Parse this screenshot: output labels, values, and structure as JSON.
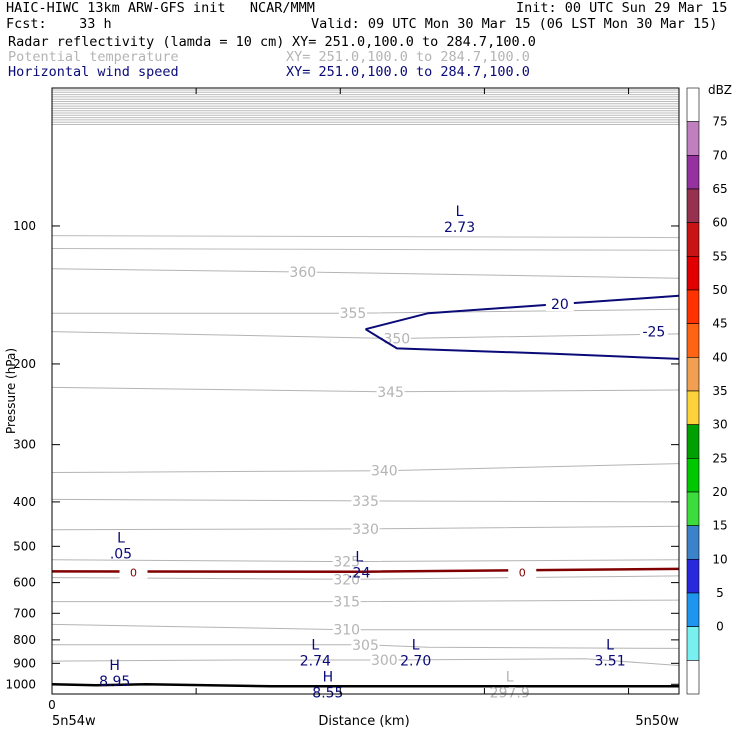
{
  "header": {
    "title": "HAIC-HIWC 13km ARW-GFS init   NCAR/MMM",
    "init": "Init: 00 UTC Sun 29 Mar 15",
    "fcst": "Fcst:    33 h",
    "valid": "Valid: 09 UTC Mon 30 Mar 15 (06 LST Mon 30 Mar 15)"
  },
  "fields": [
    {
      "name": "Radar reflectivity (lamda = 10 cm)",
      "xy": "XY= 251.0,100.0 to 284.7,100.0",
      "color": "#000000"
    },
    {
      "name": "Potential temperature",
      "xy": "XY= 251.0,100.0 to 284.7,100.0",
      "color": "#b4b4b4"
    },
    {
      "name": "Horizontal wind speed",
      "xy": "XY= 251.0,100.0 to 284.7,100.0",
      "color": "#0a0a78"
    }
  ],
  "chart_data": {
    "type": "contour",
    "ylabel": "Pressure (hPa)",
    "xlabel": "Distance (km)",
    "y_scale": "log-pressure",
    "ylim": [
      1050,
      50
    ],
    "xlim": [
      0,
      1
    ],
    "y_ticks": [
      100,
      200,
      300,
      400,
      500,
      600,
      700,
      800,
      900,
      1000
    ],
    "x_tick_start": "0",
    "x_left_label": "5n54w",
    "x_right_label": "5n50w",
    "theta_contours": [
      {
        "label": "360",
        "lx": 0.4,
        "ly": 126,
        "pts": [
          [
            0,
            124
          ],
          [
            0.4,
            126
          ],
          [
            1,
            130
          ]
        ]
      },
      {
        "label": "355",
        "lx": 0.48,
        "ly": 155,
        "pts": [
          [
            0,
            155
          ],
          [
            0.48,
            155
          ],
          [
            1,
            152
          ]
        ]
      },
      {
        "label": "350",
        "lx": 0.55,
        "ly": 176,
        "pts": [
          [
            0,
            170
          ],
          [
            0.55,
            176
          ],
          [
            1,
            172
          ]
        ]
      },
      {
        "label": "345",
        "lx": 0.54,
        "ly": 230,
        "pts": [
          [
            0,
            225
          ],
          [
            0.54,
            230
          ],
          [
            1,
            228
          ]
        ]
      },
      {
        "label": "340",
        "lx": 0.53,
        "ly": 342,
        "pts": [
          [
            0,
            345
          ],
          [
            0.53,
            342
          ],
          [
            1,
            330
          ]
        ]
      },
      {
        "label": "335",
        "lx": 0.5,
        "ly": 398,
        "pts": [
          [
            0,
            395
          ],
          [
            0.5,
            398
          ],
          [
            1,
            400
          ]
        ]
      },
      {
        "label": "330",
        "lx": 0.5,
        "ly": 458,
        "pts": [
          [
            0,
            460
          ],
          [
            0.5,
            458
          ],
          [
            1,
            452
          ]
        ]
      },
      {
        "label": "325",
        "lx": 0.47,
        "ly": 540,
        "pts": [
          [
            0,
            535
          ],
          [
            0.47,
            540
          ],
          [
            1,
            535
          ]
        ]
      },
      {
        "label": "320",
        "lx": 0.47,
        "ly": 590,
        "pts": [
          [
            0,
            585
          ],
          [
            0.47,
            590
          ],
          [
            1,
            580
          ]
        ]
      },
      {
        "label": "315",
        "lx": 0.47,
        "ly": 660,
        "pts": [
          [
            0,
            660
          ],
          [
            0.47,
            660
          ],
          [
            1,
            655
          ]
        ]
      },
      {
        "label": "310",
        "lx": 0.47,
        "ly": 760,
        "pts": [
          [
            0,
            740
          ],
          [
            0.47,
            760
          ],
          [
            1,
            760
          ]
        ]
      },
      {
        "label": "305",
        "lx": 0.5,
        "ly": 820,
        "pts": [
          [
            0,
            820
          ],
          [
            0.5,
            820
          ],
          [
            0.6,
            830
          ],
          [
            1,
            835
          ]
        ]
      },
      {
        "label": "300",
        "lx": 0.53,
        "ly": 885,
        "pts": [
          [
            0,
            890
          ],
          [
            0.3,
            885
          ],
          [
            0.53,
            885
          ],
          [
            0.85,
            880
          ],
          [
            1,
            910
          ]
        ]
      }
    ],
    "wind_contours": [
      {
        "label": "20",
        "lx": 0.81,
        "ly": 148,
        "pts": [
          [
            0.5,
            168
          ],
          [
            0.6,
            155
          ],
          [
            0.81,
            148
          ],
          [
            1,
            142
          ]
        ]
      },
      {
        "label": "-25",
        "lx": 0.96,
        "ly": 170,
        "pts": [
          [
            0.5,
            168
          ],
          [
            0.55,
            185
          ],
          [
            0.8,
            190
          ],
          [
            1,
            195
          ]
        ]
      }
    ],
    "dbz_contours": [
      {
        "label": "0",
        "lx": 0.13,
        "ly": 568,
        "pts": [
          [
            0,
            567
          ],
          [
            0.5,
            568
          ],
          [
            1,
            560
          ]
        ]
      },
      {
        "label": "0",
        "lx": 0.75,
        "ly": 568,
        "pts": [
          [
            0.75,
            568
          ]
        ]
      }
    ],
    "surface_line": {
      "pts": [
        [
          0,
          1000
        ],
        [
          0.07,
          1005
        ],
        [
          0.15,
          1000
        ],
        [
          0.35,
          1010
        ],
        [
          1,
          1010
        ]
      ]
    },
    "annotations": [
      {
        "letter": "L",
        "value": "2.73",
        "x": 0.65,
        "p": 95,
        "color": "#0a0a78"
      },
      {
        "letter": "L",
        "value": ".05",
        "x": 0.11,
        "p": 490,
        "color": "#0a0a78"
      },
      {
        "letter": "L",
        "value": ".24",
        "x": 0.49,
        "p": 540,
        "color": "#0a0a78"
      },
      {
        "letter": "L",
        "value": "2.74",
        "x": 0.42,
        "p": 840,
        "color": "#0a0a78"
      },
      {
        "letter": "L",
        "value": "2.70",
        "x": 0.58,
        "p": 840,
        "color": "#0a0a78"
      },
      {
        "letter": "L",
        "value": "3.51",
        "x": 0.89,
        "p": 840,
        "color": "#0a0a78"
      },
      {
        "letter": "H",
        "value": "8.95",
        "x": 0.1,
        "p": 930,
        "color": "#0a0a78"
      },
      {
        "letter": "H",
        "value": "8.55",
        "x": 0.44,
        "p": 985,
        "color": "#0a0a78"
      },
      {
        "letter": "L",
        "value": "297.9",
        "x": 0.73,
        "p": 985,
        "color": "#b4b4b4"
      }
    ]
  },
  "colorbar": {
    "unit": "dBZ",
    "levels": [
      "75",
      "70",
      "65",
      "60",
      "55",
      "50",
      "45",
      "40",
      "35",
      "30",
      "25",
      "20",
      "15",
      "10",
      "5",
      "0"
    ],
    "colors": [
      "#ffffff",
      "#c080c0",
      "#9632a0",
      "#963250",
      "#c81414",
      "#e10000",
      "#ff3200",
      "#ff6414",
      "#f0a050",
      "#ffd23c",
      "#00a000",
      "#00c800",
      "#3cdc3c",
      "#3c82c8",
      "#2828dc",
      "#1e96f0",
      "#78f0f0",
      "#ffffff"
    ]
  }
}
